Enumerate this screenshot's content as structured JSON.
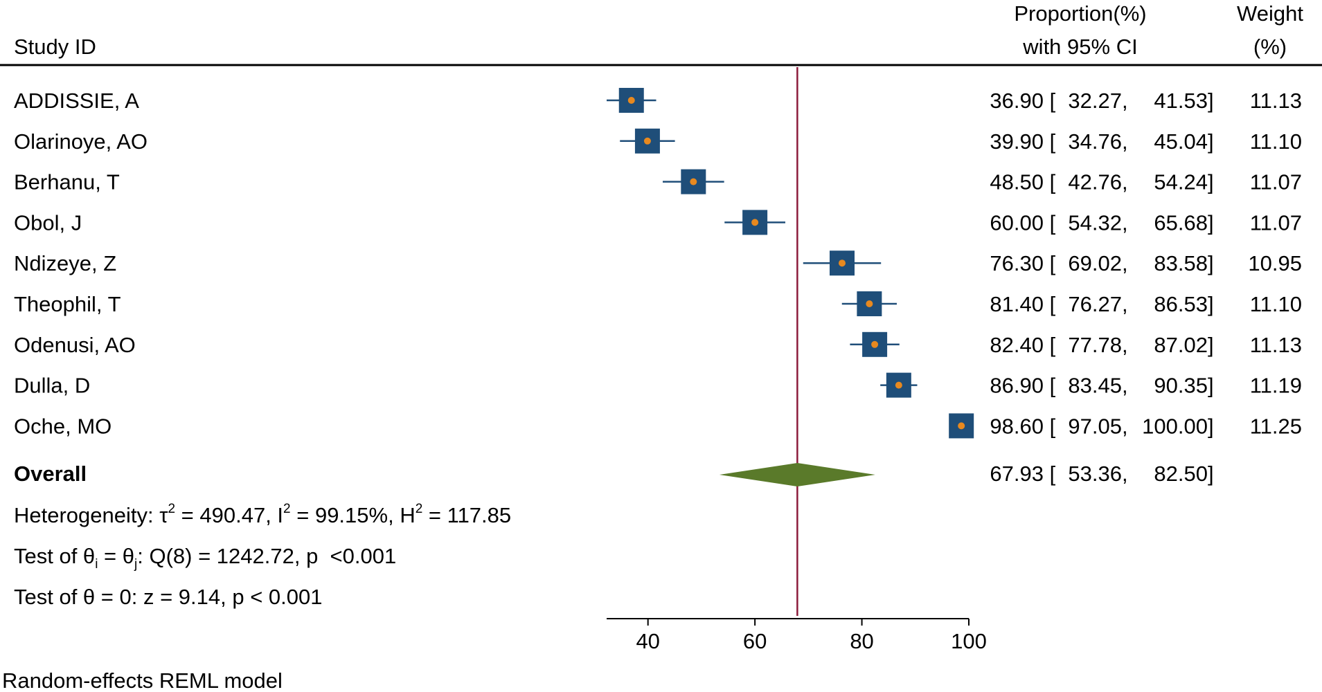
{
  "chart_data": {
    "type": "forest",
    "headers": {
      "study": "Study ID",
      "estimate_line1": "Proportion(%)",
      "estimate_line2": "with 95% CI",
      "weight_line1": "Weight",
      "weight_line2": "(%)"
    },
    "studies": [
      {
        "id": "ADDISSIE, A",
        "es": 36.9,
        "lo": 32.27,
        "hi": 41.53,
        "weight": 11.13,
        "es_text": "36.90",
        "lo_text": "32.27",
        "hi_text": "41.53",
        "weight_text": "11.13"
      },
      {
        "id": "Olarinoye, AO",
        "es": 39.9,
        "lo": 34.76,
        "hi": 45.04,
        "weight": 11.1,
        "es_text": "39.90",
        "lo_text": "34.76",
        "hi_text": "45.04",
        "weight_text": "11.10"
      },
      {
        "id": "Berhanu, T",
        "es": 48.5,
        "lo": 42.76,
        "hi": 54.24,
        "weight": 11.07,
        "es_text": "48.50",
        "lo_text": "42.76",
        "hi_text": "54.24",
        "weight_text": "11.07"
      },
      {
        "id": "Obol, J",
        "es": 60.0,
        "lo": 54.32,
        "hi": 65.68,
        "weight": 11.07,
        "es_text": "60.00",
        "lo_text": "54.32",
        "hi_text": "65.68",
        "weight_text": "11.07"
      },
      {
        "id": "Ndizeye, Z",
        "es": 76.3,
        "lo": 69.02,
        "hi": 83.58,
        "weight": 10.95,
        "es_text": "76.30",
        "lo_text": "69.02",
        "hi_text": "83.58",
        "weight_text": "10.95"
      },
      {
        "id": "Theophil, T",
        "es": 81.4,
        "lo": 76.27,
        "hi": 86.53,
        "weight": 11.1,
        "es_text": "81.40",
        "lo_text": "76.27",
        "hi_text": "86.53",
        "weight_text": "11.10"
      },
      {
        "id": "Odenusi, AO",
        "es": 82.4,
        "lo": 77.78,
        "hi": 87.02,
        "weight": 11.13,
        "es_text": "82.40",
        "lo_text": "77.78",
        "hi_text": "87.02",
        "weight_text": "11.13"
      },
      {
        "id": "Dulla, D",
        "es": 86.9,
        "lo": 83.45,
        "hi": 90.35,
        "weight": 11.19,
        "es_text": "86.90",
        "lo_text": "83.45",
        "hi_text": "90.35",
        "weight_text": "11.19"
      },
      {
        "id": "Oche, MO",
        "es": 98.6,
        "lo": 97.05,
        "hi": 100.0,
        "weight": 11.25,
        "es_text": "98.60",
        "lo_text": "97.05",
        "hi_text": "100.00",
        "weight_text": "11.25"
      }
    ],
    "overall": {
      "label": "Overall",
      "es": 67.93,
      "lo": 53.36,
      "hi": 82.5,
      "es_text": "67.93",
      "lo_text": "53.36",
      "hi_text": "82.50"
    },
    "stats": {
      "het_prefix": "Heterogeneity: τ",
      "het_tau_sup": "2",
      "het_tau_val": " = 490.47, I",
      "het_i_sup": "2",
      "het_i_val": " = 99.15%, H",
      "het_h_sup": "2",
      "het_h_val": " = 117.85",
      "q_prefix": "Test of θ",
      "q_sub1": "i",
      "q_mid": " = θ",
      "q_sub2": "j",
      "q_rest": ": Q(8) = 1242.72, p  <0.001",
      "z_test": "Test of θ = 0: z = 9.14, p < 0.001"
    },
    "x_axis": {
      "ticks": [
        40,
        60,
        80,
        100
      ],
      "tick_labels": [
        "40",
        "60",
        "80",
        "100"
      ],
      "range": [
        32.27,
        100
      ]
    },
    "reference_line": 67.93,
    "footnote": "Random-effects REML model",
    "colors": {
      "box": "#1f4e79",
      "point": "#e8891f",
      "ci_line": "#1f4e79",
      "diamond": "#5a7a2a",
      "ref_line": "#8b1a3a",
      "axis": "#000000"
    }
  }
}
